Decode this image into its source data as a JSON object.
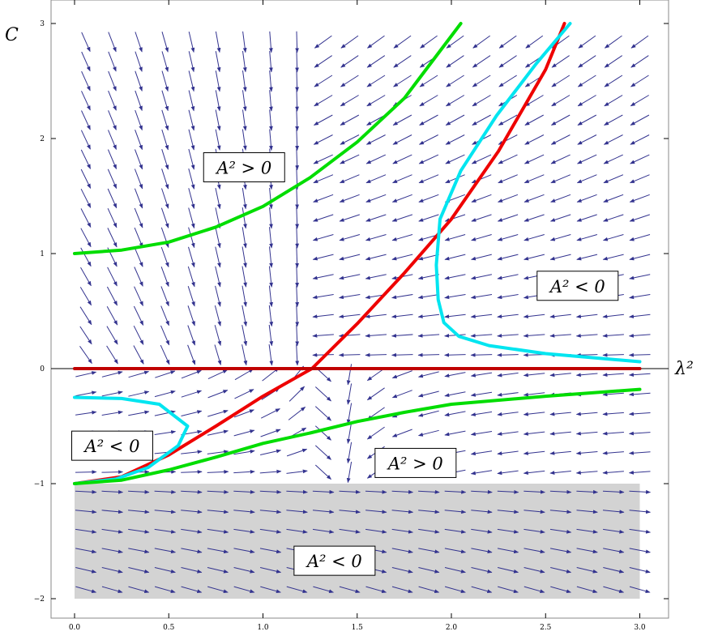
{
  "chart_data": {
    "type": "stream_plot",
    "xlabel": "λ²",
    "ylabel": "C",
    "xlim": [
      -0.12,
      3.15
    ],
    "ylim": [
      -2.2,
      3.1
    ],
    "xticks": [
      "0.0",
      "0.5",
      "1.0",
      "1.5",
      "2.0",
      "2.5",
      "3.0"
    ],
    "yticks": [
      "−2",
      "−1",
      "0",
      "1",
      "2",
      "3"
    ],
    "xtick_values": [
      0,
      0.5,
      1.0,
      1.5,
      2.0,
      2.5,
      3.0
    ],
    "ytick_values": [
      -2,
      -1,
      0,
      1,
      2,
      3
    ],
    "fixed_point": {
      "x": 1.26,
      "y": 0
    },
    "shaded_region": {
      "x": [
        0,
        3
      ],
      "y": [
        -2,
        -1
      ],
      "color": "#d3d3d3"
    },
    "region_labels": [
      {
        "text": "A² > 0",
        "x": 0.9,
        "y": 1.75
      },
      {
        "text": "A² < 0",
        "x": 2.67,
        "y": 0.72
      },
      {
        "text": "A² < 0",
        "x": 0.2,
        "y": -0.67
      },
      {
        "text": "A² > 0",
        "x": 1.81,
        "y": -0.82
      },
      {
        "text": "A² < 0",
        "x": 1.38,
        "y": -1.67
      }
    ],
    "series": [
      {
        "color": "#00dd00",
        "points": [
          [
            0,
            1
          ],
          [
            0.25,
            1.03
          ],
          [
            0.5,
            1.1
          ],
          [
            0.75,
            1.23
          ],
          [
            1.0,
            1.41
          ],
          [
            1.25,
            1.66
          ],
          [
            1.5,
            1.97
          ],
          [
            1.75,
            2.35
          ],
          [
            2.05,
            3.0
          ]
        ]
      },
      {
        "color": "#ee0000",
        "points": [
          [
            0,
            -1
          ],
          [
            0.25,
            -0.94
          ],
          [
            0.5,
            -0.75
          ],
          [
            0.75,
            -0.5
          ],
          [
            1.0,
            -0.24
          ],
          [
            1.26,
            0
          ],
          [
            1.5,
            0.39
          ],
          [
            1.75,
            0.83
          ],
          [
            2.0,
            1.3
          ],
          [
            2.25,
            1.89
          ],
          [
            2.5,
            2.6
          ],
          [
            2.6,
            3.0
          ]
        ]
      },
      {
        "color": "#00e5f0",
        "points": [
          [
            2.63,
            3.0
          ],
          [
            2.45,
            2.65
          ],
          [
            2.24,
            2.2
          ],
          [
            2.05,
            1.72
          ],
          [
            1.94,
            1.3
          ],
          [
            1.92,
            0.9
          ],
          [
            1.93,
            0.6
          ],
          [
            1.96,
            0.4
          ],
          [
            2.04,
            0.28
          ],
          [
            2.2,
            0.2
          ],
          [
            2.5,
            0.13
          ],
          [
            3.0,
            0.06
          ]
        ]
      },
      {
        "color": "#00e5f0",
        "points": [
          [
            0,
            -0.25
          ],
          [
            0.25,
            -0.26
          ],
          [
            0.45,
            -0.31
          ],
          [
            0.6,
            -0.5
          ],
          [
            0.55,
            -0.67
          ],
          [
            0.39,
            -0.86
          ],
          [
            0.22,
            -0.96
          ],
          [
            0,
            -1
          ]
        ]
      },
      {
        "color": "#00dd00",
        "points": [
          [
            0,
            -1
          ],
          [
            0.25,
            -0.97
          ],
          [
            0.5,
            -0.88
          ],
          [
            0.75,
            -0.77
          ],
          [
            1.0,
            -0.65
          ],
          [
            1.25,
            -0.56
          ],
          [
            1.5,
            -0.46
          ],
          [
            1.75,
            -0.38
          ],
          [
            2.0,
            -0.31
          ],
          [
            2.5,
            -0.24
          ],
          [
            3.0,
            -0.18
          ]
        ]
      },
      {
        "color": "#c00000",
        "points": [
          [
            0,
            0
          ],
          [
            3.0,
            0
          ]
        ]
      }
    ],
    "arrow_color": "#33338f"
  }
}
